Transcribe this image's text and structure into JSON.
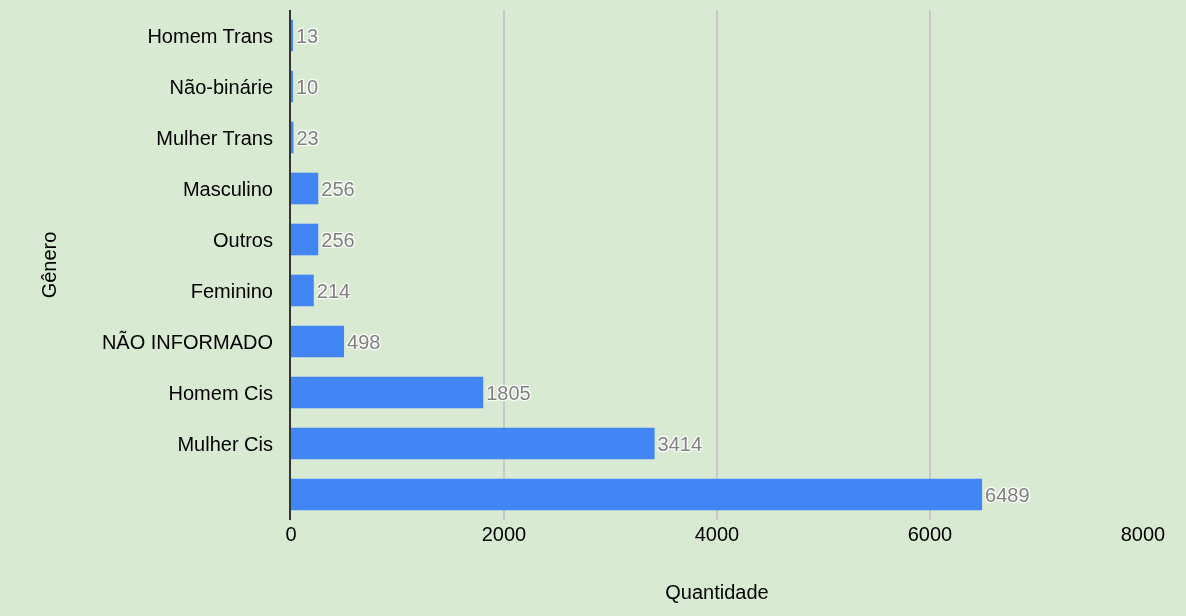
{
  "chart_data": {
    "type": "bar",
    "orientation": "horizontal",
    "xlabel": "Quantidade",
    "ylabel": "Gênero",
    "categories": [
      "Homem Trans",
      "Não-binárie",
      "Mulher Trans",
      "Masculino",
      "Outros",
      "Feminino",
      "NÃO INFORMADO",
      "Homem Cis",
      "Mulher Cis",
      null
    ],
    "values": [
      13,
      10,
      23,
      256,
      256,
      214,
      498,
      1805,
      3414,
      6489
    ],
    "color": "#4285f4",
    "xlim": [
      0,
      8000
    ],
    "xticks": [
      0,
      2000,
      4000,
      6000,
      8000
    ],
    "grid": "x",
    "data_labels": true
  }
}
